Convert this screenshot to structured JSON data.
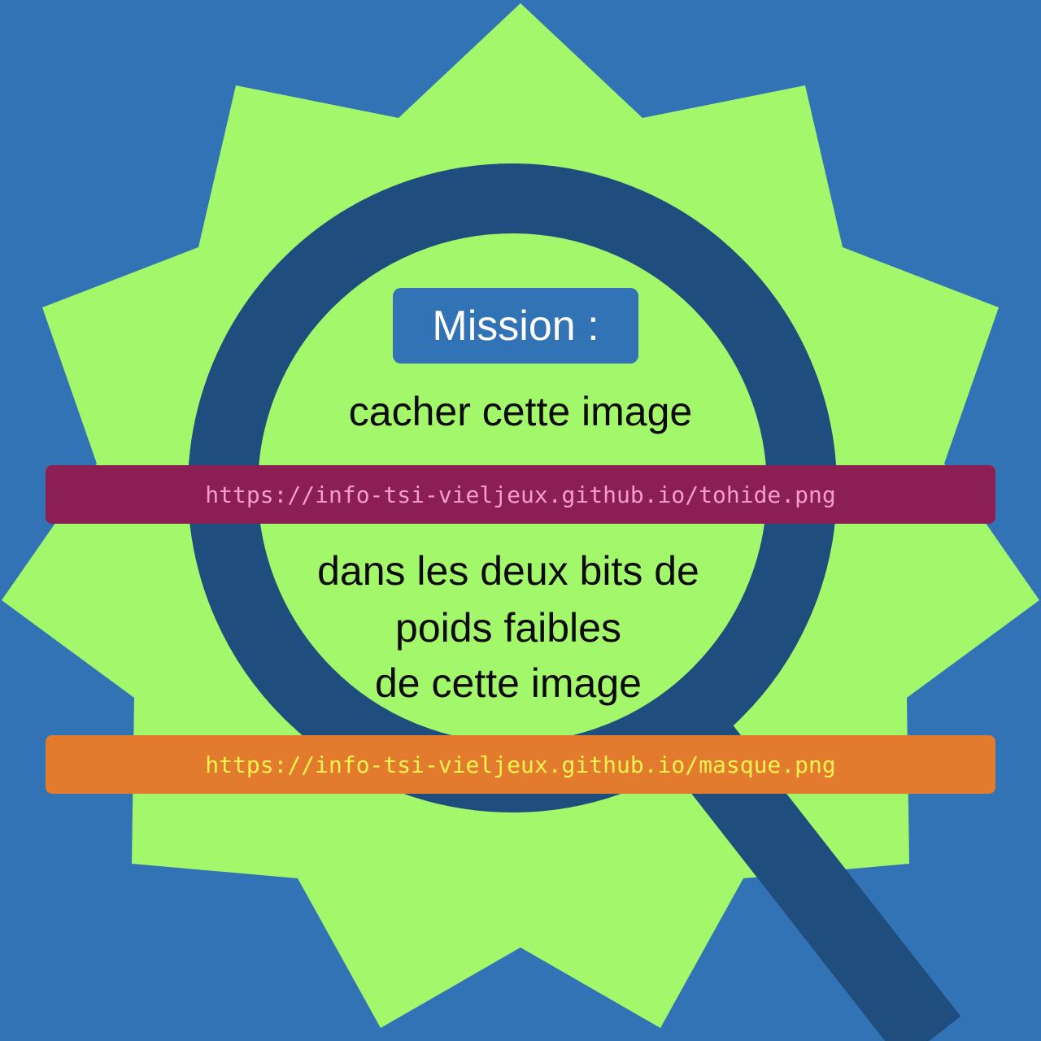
{
  "colors": {
    "background": "#3273b6",
    "star": "#a3f76b",
    "magnifier": "#1f4d7e",
    "badge": "#3273b6",
    "url_bar_1": "#8b1e52",
    "url_bar_1_text": "#f59ec9",
    "url_bar_2": "#e37b2e",
    "url_bar_2_text": "#fff34f"
  },
  "mission": {
    "label": "Mission :"
  },
  "line1": "cacher cette image",
  "url1": "https://info-tsi-vieljeux.github.io/tohide.png",
  "line2": [
    "dans les deux bits de",
    "poids faibles",
    "de cette image"
  ],
  "url2": "https://info-tsi-vieljeux.github.io/masque.png",
  "icons": [
    "magnifying-glass-icon",
    "star-burst-shape"
  ]
}
